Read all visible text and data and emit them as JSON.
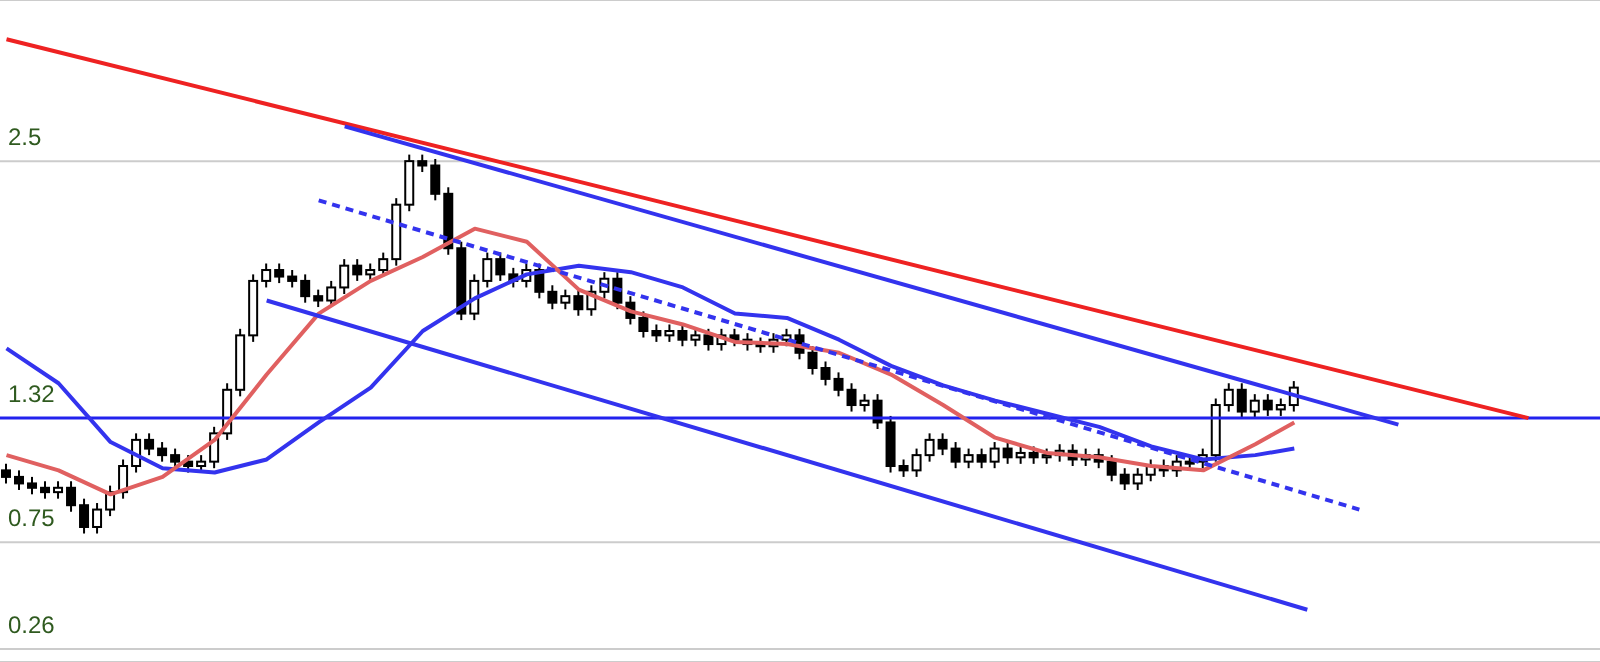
{
  "chart_data": {
    "type": "candlestick",
    "categories": [
      null,
      null,
      null,
      null,
      null,
      null,
      null,
      null,
      null,
      null,
      null,
      null,
      null,
      null,
      null,
      null,
      null,
      null,
      null,
      null,
      null,
      null,
      null,
      null,
      null,
      null,
      null,
      null,
      null,
      null,
      null,
      null,
      null,
      null,
      null,
      null,
      null,
      null,
      null,
      null,
      null,
      null,
      null,
      null,
      null,
      null,
      null,
      null,
      null,
      null,
      null,
      null,
      null,
      null,
      null,
      null,
      null,
      null,
      null,
      null,
      null,
      null,
      null,
      null,
      null,
      null,
      null,
      null,
      null,
      null,
      null,
      null,
      null,
      null,
      null,
      null,
      null,
      null,
      null,
      null,
      null,
      null,
      null,
      null,
      null,
      null,
      null,
      null,
      null,
      null,
      null,
      null,
      null,
      null,
      null,
      null,
      null,
      null,
      null,
      null,
      null,
      null,
      null,
      null,
      null,
      null,
      null,
      null,
      null,
      null,
      null,
      null,
      null,
      null,
      null,
      null,
      null,
      null,
      null,
      null,
      null,
      null,
      null
    ],
    "ohlc": [
      [
        1.08,
        1.11,
        1.02,
        1.05
      ],
      [
        1.05,
        1.08,
        0.99,
        1.02
      ],
      [
        1.02,
        1.05,
        0.97,
        1.0
      ],
      [
        1.0,
        1.03,
        0.95,
        0.98
      ],
      [
        0.98,
        1.03,
        0.95,
        1.0
      ],
      [
        1.0,
        1.03,
        0.89,
        0.92
      ],
      [
        0.92,
        0.95,
        0.79,
        0.82
      ],
      [
        0.82,
        0.93,
        0.79,
        0.9
      ],
      [
        0.9,
        1.01,
        0.87,
        0.98
      ],
      [
        0.98,
        1.13,
        0.95,
        1.1
      ],
      [
        1.1,
        1.25,
        1.07,
        1.22
      ],
      [
        1.22,
        1.25,
        1.15,
        1.18
      ],
      [
        1.18,
        1.21,
        1.12,
        1.15
      ],
      [
        1.15,
        1.18,
        1.09,
        1.12
      ],
      [
        1.12,
        1.15,
        1.07,
        1.1
      ],
      [
        1.1,
        1.15,
        1.07,
        1.12
      ],
      [
        1.12,
        1.28,
        1.09,
        1.25
      ],
      [
        1.25,
        1.48,
        1.22,
        1.45
      ],
      [
        1.45,
        1.73,
        1.42,
        1.7
      ],
      [
        1.7,
        1.98,
        1.67,
        1.95
      ],
      [
        1.95,
        2.03,
        1.92,
        2.0
      ],
      [
        2.0,
        2.03,
        1.94,
        1.97
      ],
      [
        1.97,
        2.0,
        1.92,
        1.95
      ],
      [
        1.95,
        1.98,
        1.85,
        1.88
      ],
      [
        1.88,
        1.91,
        1.83,
        1.86
      ],
      [
        1.86,
        1.95,
        1.83,
        1.92
      ],
      [
        1.92,
        2.05,
        1.89,
        2.02
      ],
      [
        2.02,
        2.05,
        1.95,
        1.98
      ],
      [
        1.98,
        2.03,
        1.95,
        2.0
      ],
      [
        2.0,
        2.08,
        1.97,
        2.05
      ],
      [
        2.05,
        2.33,
        2.02,
        2.3
      ],
      [
        2.3,
        2.53,
        2.27,
        2.5
      ],
      [
        2.5,
        2.53,
        2.45,
        2.48
      ],
      [
        2.48,
        2.51,
        2.32,
        2.35
      ],
      [
        2.35,
        2.38,
        2.07,
        2.1
      ],
      [
        2.1,
        2.13,
        1.77,
        1.8
      ],
      [
        1.8,
        1.98,
        1.77,
        1.95
      ],
      [
        1.95,
        2.08,
        1.92,
        2.05
      ],
      [
        2.05,
        2.08,
        1.95,
        1.98
      ],
      [
        1.98,
        2.01,
        1.92,
        1.95
      ],
      [
        1.95,
        2.03,
        1.92,
        2.0
      ],
      [
        2.0,
        2.03,
        1.87,
        1.9
      ],
      [
        1.9,
        1.93,
        1.82,
        1.85
      ],
      [
        1.85,
        1.91,
        1.82,
        1.88
      ],
      [
        1.88,
        1.91,
        1.79,
        1.82
      ],
      [
        1.82,
        1.93,
        1.79,
        1.9
      ],
      [
        1.9,
        1.99,
        1.87,
        1.96
      ],
      [
        1.96,
        1.99,
        1.82,
        1.85
      ],
      [
        1.85,
        1.88,
        1.75,
        1.78
      ],
      [
        1.78,
        1.81,
        1.69,
        1.72
      ],
      [
        1.72,
        1.75,
        1.67,
        1.7
      ],
      [
        1.7,
        1.75,
        1.67,
        1.72
      ],
      [
        1.72,
        1.75,
        1.65,
        1.68
      ],
      [
        1.68,
        1.73,
        1.65,
        1.7
      ],
      [
        1.7,
        1.73,
        1.63,
        1.66
      ],
      [
        1.66,
        1.73,
        1.63,
        1.7
      ],
      [
        1.7,
        1.73,
        1.65,
        1.68
      ],
      [
        1.68,
        1.71,
        1.63,
        1.66
      ],
      [
        1.66,
        1.69,
        1.62,
        1.65
      ],
      [
        1.65,
        1.71,
        1.62,
        1.68
      ],
      [
        1.68,
        1.73,
        1.65,
        1.7
      ],
      [
        1.7,
        1.73,
        1.59,
        1.62
      ],
      [
        1.62,
        1.65,
        1.52,
        1.55
      ],
      [
        1.55,
        1.58,
        1.47,
        1.5
      ],
      [
        1.5,
        1.53,
        1.42,
        1.45
      ],
      [
        1.45,
        1.48,
        1.35,
        1.38
      ],
      [
        1.38,
        1.43,
        1.35,
        1.4
      ],
      [
        1.4,
        1.43,
        1.27,
        1.3
      ],
      [
        1.3,
        1.33,
        1.07,
        1.1
      ],
      [
        1.1,
        1.13,
        1.05,
        1.08
      ],
      [
        1.08,
        1.18,
        1.05,
        1.15
      ],
      [
        1.15,
        1.25,
        1.12,
        1.22
      ],
      [
        1.22,
        1.25,
        1.15,
        1.18
      ],
      [
        1.18,
        1.21,
        1.09,
        1.12
      ],
      [
        1.12,
        1.18,
        1.09,
        1.15
      ],
      [
        1.15,
        1.18,
        1.09,
        1.12
      ],
      [
        1.12,
        1.21,
        1.09,
        1.18
      ],
      [
        1.18,
        1.21,
        1.11,
        1.14
      ],
      [
        1.14,
        1.19,
        1.11,
        1.16
      ],
      [
        1.16,
        1.19,
        1.11,
        1.14
      ],
      [
        1.14,
        1.18,
        1.11,
        1.15
      ],
      [
        1.15,
        1.2,
        1.12,
        1.17
      ],
      [
        1.17,
        1.2,
        1.1,
        1.13
      ],
      [
        1.13,
        1.18,
        1.1,
        1.15
      ],
      [
        1.15,
        1.18,
        1.09,
        1.12
      ],
      [
        1.12,
        1.15,
        1.03,
        1.06
      ],
      [
        1.06,
        1.09,
        0.99,
        1.02
      ],
      [
        1.02,
        1.09,
        0.99,
        1.06
      ],
      [
        1.06,
        1.13,
        1.03,
        1.1
      ],
      [
        1.1,
        1.13,
        1.05,
        1.08
      ],
      [
        1.08,
        1.15,
        1.05,
        1.12
      ],
      [
        1.12,
        1.15,
        1.09,
        1.12
      ],
      [
        1.12,
        1.18,
        1.09,
        1.15
      ],
      [
        1.15,
        1.41,
        1.12,
        1.38
      ],
      [
        1.38,
        1.48,
        1.35,
        1.45
      ],
      [
        1.45,
        1.48,
        1.32,
        1.35
      ],
      [
        1.35,
        1.43,
        1.32,
        1.4
      ],
      [
        1.4,
        1.43,
        1.33,
        1.36
      ],
      [
        1.36,
        1.41,
        1.33,
        1.38
      ],
      [
        1.38,
        1.49,
        1.35,
        1.46
      ],
      null,
      null,
      null,
      null,
      null,
      null,
      null,
      null,
      null,
      null,
      null,
      null,
      null,
      null,
      null,
      null,
      null,
      null,
      null,
      null,
      null,
      null,
      null
    ],
    "series": [
      {
        "type": "line",
        "color": "#3333ee",
        "values": [
          1.64,
          null,
          null,
          null,
          1.48,
          null,
          null,
          null,
          1.21,
          null,
          null,
          null,
          1.09,
          null,
          null,
          null,
          1.07,
          null,
          null,
          null,
          1.13,
          null,
          null,
          null,
          1.3,
          null,
          null,
          null,
          1.46,
          null,
          null,
          null,
          1.72,
          null,
          null,
          null,
          1.87,
          null,
          null,
          null,
          1.98,
          null,
          null,
          null,
          2.02,
          null,
          null,
          null,
          1.99,
          null,
          null,
          null,
          1.92,
          null,
          null,
          null,
          1.8,
          null,
          null,
          null,
          1.78,
          null,
          null,
          null,
          1.68,
          null,
          null,
          null,
          1.56,
          null,
          null,
          null,
          1.47,
          null,
          null,
          null,
          1.4,
          null,
          null,
          null,
          1.34,
          null,
          null,
          null,
          1.28,
          null,
          null,
          null,
          1.19,
          null,
          null,
          null,
          1.13,
          null,
          null,
          null,
          1.15,
          null,
          null,
          1.18,
          null,
          null,
          null,
          null,
          null,
          null,
          null,
          null,
          null,
          null,
          null,
          null,
          null,
          null,
          null,
          null,
          null,
          null,
          null,
          null,
          null,
          null,
          null
        ]
      },
      {
        "type": "line",
        "color": "#e06060",
        "values": [
          1.15,
          null,
          null,
          null,
          1.08,
          null,
          null,
          null,
          0.97,
          null,
          null,
          null,
          1.05,
          null,
          null,
          null,
          1.22,
          null,
          null,
          null,
          1.52,
          null,
          null,
          null,
          1.8,
          null,
          null,
          null,
          1.95,
          null,
          null,
          null,
          2.06,
          null,
          null,
          null,
          2.19,
          null,
          null,
          null,
          2.13,
          null,
          null,
          null,
          1.91,
          null,
          null,
          null,
          1.81,
          null,
          null,
          null,
          1.75,
          null,
          null,
          null,
          1.67,
          null,
          null,
          null,
          1.66,
          null,
          null,
          null,
          1.62,
          null,
          null,
          null,
          1.52,
          null,
          null,
          null,
          1.38,
          null,
          null,
          null,
          1.23,
          null,
          null,
          null,
          1.16,
          null,
          null,
          null,
          1.14,
          null,
          null,
          null,
          1.1,
          null,
          null,
          null,
          1.08,
          null,
          null,
          null,
          1.2,
          null,
          null,
          1.3,
          null,
          null,
          null,
          null,
          null,
          null,
          null,
          null,
          null,
          null,
          null,
          null,
          null,
          null,
          null,
          null,
          null,
          null,
          null,
          null,
          null,
          null,
          null
        ]
      },
      {
        "type": "line",
        "color": "#ee2222",
        "values": [
          3.06,
          null,
          null,
          null,
          null,
          null,
          null,
          null,
          null,
          null,
          null,
          null,
          null,
          null,
          null,
          null,
          null,
          null,
          null,
          null,
          null,
          null,
          null,
          null,
          null,
          null,
          null,
          null,
          null,
          null,
          null,
          null,
          null,
          null,
          null,
          null,
          null,
          null,
          null,
          null,
          null,
          null,
          null,
          null,
          null,
          null,
          null,
          null,
          null,
          null,
          null,
          null,
          null,
          null,
          null,
          null,
          null,
          null,
          null,
          null,
          null,
          null,
          null,
          null,
          null,
          null,
          null,
          null,
          null,
          null,
          null,
          null,
          null,
          null,
          null,
          null,
          null,
          null,
          null,
          null,
          null,
          null,
          null,
          null,
          null,
          null,
          null,
          null,
          null,
          null,
          null,
          null,
          null,
          null,
          null,
          null,
          null,
          null,
          null,
          null,
          null,
          null,
          null,
          null,
          null,
          null,
          null,
          null,
          null,
          null,
          null,
          null,
          null,
          null,
          null,
          null,
          null,
          1.32,
          null,
          null,
          null,
          null,
          null
        ]
      },
      {
        "type": "line",
        "color": "#3333ee",
        "values": [
          null,
          null,
          null,
          null,
          null,
          null,
          null,
          null,
          null,
          null,
          null,
          null,
          null,
          null,
          null,
          null,
          null,
          null,
          null,
          null,
          null,
          null,
          null,
          null,
          null,
          null,
          2.66,
          null,
          null,
          null,
          null,
          null,
          null,
          null,
          null,
          null,
          null,
          null,
          null,
          null,
          null,
          null,
          null,
          null,
          null,
          null,
          null,
          null,
          null,
          null,
          null,
          null,
          null,
          null,
          null,
          null,
          null,
          null,
          null,
          null,
          null,
          null,
          null,
          null,
          null,
          null,
          null,
          null,
          null,
          null,
          null,
          null,
          null,
          null,
          null,
          null,
          null,
          null,
          null,
          null,
          null,
          null,
          null,
          null,
          null,
          null,
          null,
          null,
          null,
          null,
          null,
          null,
          null,
          null,
          null,
          null,
          null,
          null,
          null,
          null,
          null,
          null,
          null,
          null,
          null,
          null,
          null,
          1.29,
          null,
          null,
          null,
          null,
          null,
          null,
          null,
          null,
          null,
          null,
          null,
          null,
          null,
          null,
          null
        ]
      },
      {
        "type": "line",
        "color": "#3333ee",
        "values": [
          null,
          null,
          null,
          null,
          null,
          null,
          null,
          null,
          null,
          null,
          null,
          null,
          null,
          null,
          null,
          null,
          null,
          null,
          null,
          null,
          1.86,
          null,
          null,
          null,
          null,
          null,
          null,
          null,
          null,
          null,
          null,
          null,
          null,
          null,
          null,
          null,
          null,
          null,
          null,
          null,
          null,
          null,
          null,
          null,
          null,
          null,
          null,
          null,
          null,
          null,
          null,
          null,
          null,
          null,
          null,
          null,
          null,
          null,
          null,
          null,
          null,
          null,
          null,
          null,
          null,
          null,
          null,
          null,
          null,
          null,
          null,
          null,
          null,
          null,
          null,
          null,
          null,
          null,
          null,
          null,
          null,
          null,
          null,
          null,
          null,
          null,
          null,
          null,
          null,
          null,
          null,
          null,
          null,
          null,
          null,
          null,
          null,
          null,
          null,
          null,
          0.44,
          null,
          null,
          null,
          null,
          null,
          null,
          null,
          null,
          null,
          null,
          null,
          null,
          null,
          null,
          null,
          null,
          null,
          null,
          null,
          null,
          null,
          null
        ]
      },
      {
        "type": "line",
        "color": "#3333ee",
        "line_style": "dashed",
        "values": [
          null,
          null,
          null,
          null,
          null,
          null,
          null,
          null,
          null,
          null,
          null,
          null,
          null,
          null,
          null,
          null,
          null,
          null,
          null,
          null,
          null,
          null,
          null,
          null,
          2.32,
          null,
          null,
          null,
          null,
          null,
          null,
          null,
          null,
          null,
          null,
          null,
          null,
          null,
          null,
          null,
          null,
          null,
          null,
          null,
          null,
          null,
          null,
          null,
          null,
          null,
          null,
          null,
          null,
          null,
          null,
          null,
          null,
          null,
          null,
          null,
          null,
          null,
          null,
          null,
          null,
          null,
          null,
          null,
          null,
          null,
          null,
          null,
          null,
          null,
          null,
          null,
          null,
          null,
          null,
          null,
          null,
          null,
          null,
          null,
          null,
          null,
          null,
          null,
          null,
          null,
          null,
          null,
          null,
          null,
          null,
          null,
          null,
          null,
          null,
          null,
          null,
          null,
          null,
          null,
          0.9,
          null,
          null,
          null,
          null,
          null,
          null,
          null,
          null,
          null,
          null,
          null,
          null,
          null,
          null,
          null,
          null,
          null,
          null
        ]
      }
    ],
    "ylim": [
      0.2,
      3.24
    ],
    "yticks": [
      0.26,
      0.75,
      1.32,
      2.5
    ],
    "grid": "y",
    "tick_labels": "y",
    "ref_lines": [
      {
        "axis": "y",
        "value": 1.32,
        "color": "#2222ee"
      }
    ]
  }
}
